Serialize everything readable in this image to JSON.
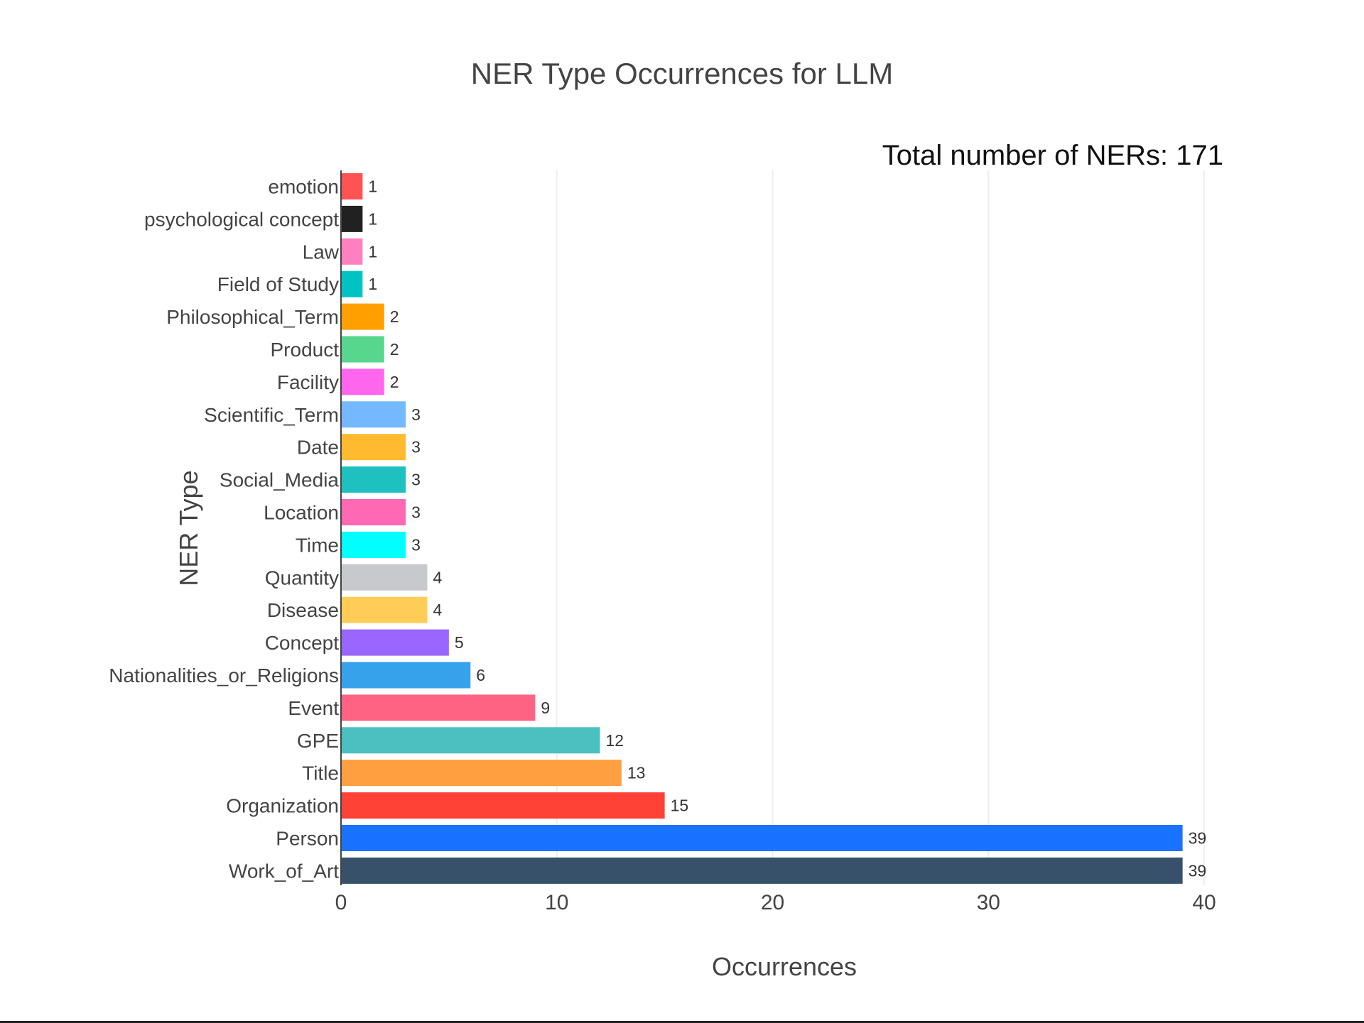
{
  "chart_data": {
    "type": "bar",
    "orientation": "horizontal",
    "title": "NER Type Occurrences for LLM",
    "annotation": "Total number of NERs: 171",
    "xlabel": "Occurrences",
    "ylabel": "NER Type",
    "xlim": [
      0,
      40
    ],
    "xticks": [
      "0",
      "10",
      "20",
      "30",
      "40"
    ],
    "grid": "vertical",
    "categories": [
      "emotion",
      "psychological concept",
      "Law",
      "Field of Study",
      "Philosophical_Term",
      "Product",
      "Facility",
      "Scientific_Term",
      "Date",
      "Social_Media",
      "Location",
      "Time",
      "Quantity",
      "Disease",
      "Concept",
      "Nationalities_or_Religions",
      "Event",
      "GPE",
      "Title",
      "Organization",
      "Person",
      "Work_of_Art"
    ],
    "values": [
      1,
      1,
      1,
      1,
      2,
      2,
      2,
      3,
      3,
      3,
      3,
      3,
      4,
      4,
      5,
      6,
      9,
      12,
      13,
      15,
      39,
      39
    ],
    "colors": [
      "#ff5252",
      "#212121",
      "#ff80c0",
      "#00c4c4",
      "#ffa000",
      "#57d68d",
      "#ff66ee",
      "#74b9ff",
      "#ffba30",
      "#1fc0c0",
      "#ff69b4",
      "#00ffff",
      "#c8c9cd",
      "#ffcd56",
      "#9966ff",
      "#36a2eb",
      "#ff6384",
      "#4bc0c0",
      "#ff9f40",
      "#ff4136",
      "#1a73ff",
      "#37516b"
    ]
  }
}
